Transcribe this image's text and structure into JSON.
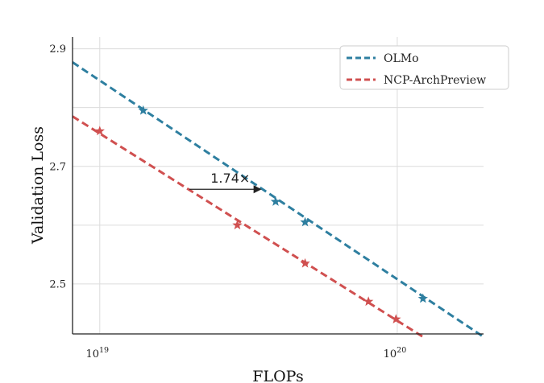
{
  "chart_data": {
    "type": "line",
    "xscale": "log",
    "xlabel": "FLOPs",
    "ylabel": "Validation Loss",
    "xlim": [
      8.1e+18,
      1.95e+20
    ],
    "ylim": [
      2.415,
      2.92
    ],
    "grid": true,
    "legend_position": "top-right",
    "x_ticks": [
      {
        "value": 1e+19,
        "label_base": "10",
        "label_exp": "19"
      },
      {
        "value": 1e+20,
        "label_base": "10",
        "label_exp": "20"
      }
    ],
    "y_ticks": [
      {
        "value": 2.5,
        "label": "2.5"
      },
      {
        "value": 2.7,
        "label": "2.7"
      },
      {
        "value": 2.9,
        "label": "2.9"
      }
    ],
    "y_minor_gridlines": [
      2.6,
      2.8
    ],
    "series": [
      {
        "name": "OLMo",
        "color": "#2e7fa0",
        "fit_line": [
          [
            8.1e+18,
            2.877
          ],
          [
            1.95e+20,
            2.41
          ]
        ],
        "points": [
          [
            1.4e+19,
            2.795
          ],
          [
            3.9e+19,
            2.64
          ],
          [
            4.9e+19,
            2.605
          ],
          [
            1.22e+20,
            2.475
          ]
        ]
      },
      {
        "name": "NCP-ArchPreview",
        "color": "#d05050",
        "fit_line": [
          [
            8.1e+18,
            2.785
          ],
          [
            1.22e+20,
            2.41
          ]
        ],
        "points": [
          [
            1e+19,
            2.76
          ],
          [
            2.9e+19,
            2.6
          ],
          [
            4.9e+19,
            2.535
          ],
          [
            8e+19,
            2.47
          ],
          [
            9.9e+19,
            2.44
          ]
        ]
      }
    ],
    "annotation": {
      "text": "1.74×",
      "arrow_from": [
        2e+19,
        2.661
      ],
      "arrow_to": [
        3.5e+19,
        2.661
      ]
    }
  }
}
